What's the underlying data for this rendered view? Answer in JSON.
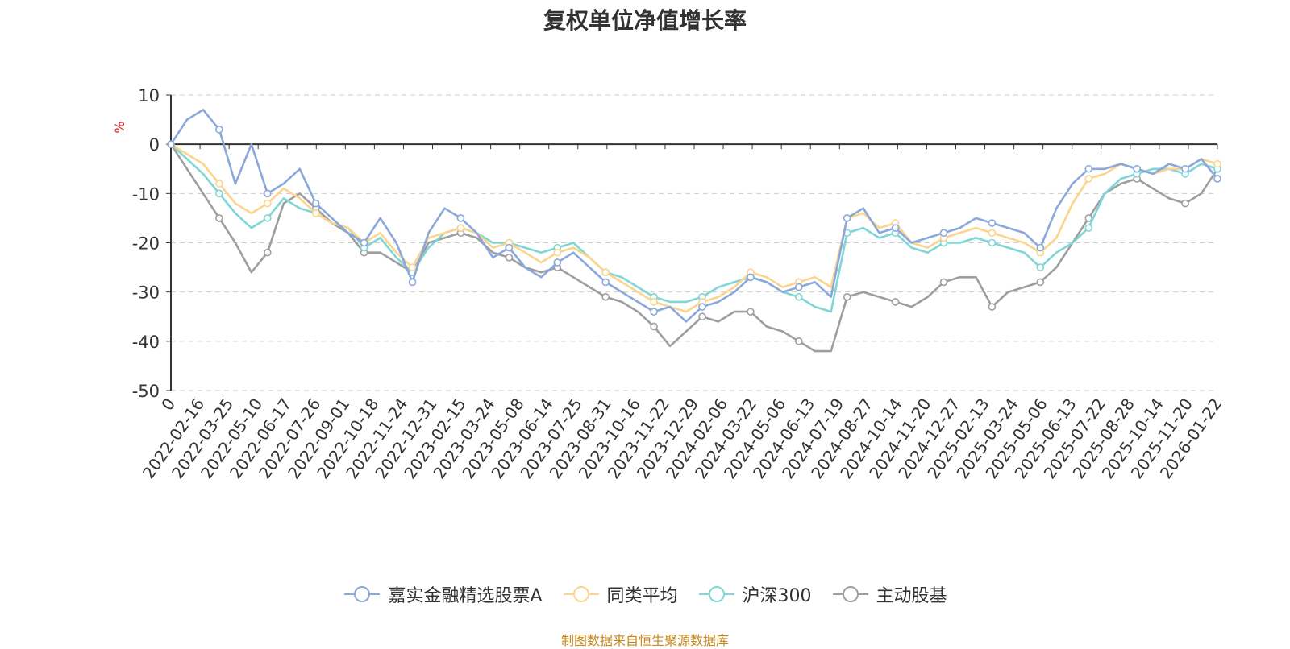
{
  "title": "复权单位净值增长率",
  "source": "制图数据来自恒生聚源数据库",
  "colors": {
    "series": [
      "#8aa8db",
      "#fcd48c",
      "#7fd6d6",
      "#9e9e9e"
    ],
    "axis": "#333333",
    "grid": "#cccccc",
    "ylabel": "#e0201b"
  },
  "chart_data": {
    "type": "line",
    "title": "复权单位净值增长率",
    "ylabel": "%",
    "ylim": [
      -50,
      10
    ],
    "yticks": [
      10,
      0,
      -10,
      -20,
      -30,
      -40,
      -50
    ],
    "grid": true,
    "legend_position": "bottom-center",
    "xtick_labels": [
      "0",
      "2022-02-16",
      "2022-03-25",
      "2022-05-10",
      "2022-06-17",
      "2022-07-26",
      "2022-09-01",
      "2022-10-18",
      "2022-11-24",
      "2022-12-31",
      "2023-02-15",
      "2023-03-24",
      "2023-05-08",
      "2023-06-14",
      "2023-07-25",
      "2023-08-31",
      "2023-10-16",
      "2023-11-22",
      "2023-12-29",
      "2024-02-06",
      "2024-03-22",
      "2024-05-06",
      "2024-06-13",
      "2024-07-19",
      "2024-08-27",
      "2024-10-14",
      "2024-11-20",
      "2024-12-27",
      "2025-02-13",
      "2025-03-24",
      "2025-05-06",
      "2025-06-13",
      "2025-07-22",
      "2025-08-28",
      "2025-10-14",
      "2025-11-20",
      "2026-01-22"
    ],
    "series": [
      {
        "name": "嘉实金融精选股票A",
        "values": [
          0,
          5,
          7,
          3,
          -8,
          0,
          -10,
          -8,
          -5,
          -12,
          -15,
          -18,
          -20,
          -15,
          -20,
          -28,
          -18,
          -13,
          -15,
          -18,
          -23,
          -21,
          -25,
          -27,
          -24,
          -22,
          -25,
          -28,
          -30,
          -32,
          -34,
          -33,
          -36,
          -33,
          -32,
          -30,
          -27,
          -28,
          -30,
          -29,
          -28,
          -31,
          -15,
          -13,
          -18,
          -17,
          -20,
          -19,
          -18,
          -17,
          -15,
          -16,
          -17,
          -18,
          -21,
          -13,
          -8,
          -5,
          -5,
          -4,
          -5,
          -6,
          -4,
          -5,
          -3,
          -7
        ]
      },
      {
        "name": "同类平均",
        "values": [
          0,
          -2,
          -4,
          -8,
          -12,
          -14,
          -12,
          -9,
          -11,
          -14,
          -16,
          -17,
          -20,
          -18,
          -22,
          -25,
          -19,
          -18,
          -17,
          -18,
          -21,
          -20,
          -22,
          -24,
          -22,
          -21,
          -23,
          -26,
          -28,
          -30,
          -32,
          -33,
          -34,
          -32,
          -31,
          -29,
          -26,
          -27,
          -29,
          -28,
          -27,
          -29,
          -15,
          -14,
          -17,
          -16,
          -20,
          -21,
          -19,
          -18,
          -17,
          -18,
          -19,
          -20,
          -22,
          -19,
          -12,
          -7,
          -6,
          -4,
          -5,
          -6,
          -5,
          -5,
          -3,
          -4
        ]
      },
      {
        "name": "沪深300",
        "values": [
          0,
          -3,
          -6,
          -10,
          -14,
          -17,
          -15,
          -11,
          -13,
          -14,
          -16,
          -17,
          -21,
          -19,
          -23,
          -26,
          -21,
          -18,
          -17,
          -18,
          -20,
          -20,
          -21,
          -22,
          -21,
          -20,
          -23,
          -26,
          -27,
          -29,
          -31,
          -32,
          -32,
          -31,
          -29,
          -28,
          -27,
          -28,
          -30,
          -31,
          -33,
          -34,
          -18,
          -17,
          -19,
          -18,
          -21,
          -22,
          -20,
          -20,
          -19,
          -20,
          -21,
          -22,
          -25,
          -22,
          -20,
          -17,
          -10,
          -7,
          -6,
          -5,
          -5,
          -6,
          -4,
          -5
        ]
      },
      {
        "name": "主动股基",
        "values": [
          0,
          -5,
          -10,
          -15,
          -20,
          -26,
          -22,
          -12,
          -10,
          -13,
          -16,
          -18,
          -22,
          -22,
          -24,
          -26,
          -20,
          -19,
          -18,
          -19,
          -22,
          -23,
          -25,
          -26,
          -25,
          -27,
          -29,
          -31,
          -32,
          -34,
          -37,
          -41,
          -38,
          -35,
          -36,
          -34,
          -34,
          -37,
          -38,
          -40,
          -42,
          -42,
          -31,
          -30,
          -31,
          -32,
          -33,
          -31,
          -28,
          -27,
          -27,
          -33,
          -30,
          -29,
          -28,
          -25,
          -20,
          -15,
          -10,
          -8,
          -7,
          -9,
          -11,
          -12,
          -10,
          -5
        ]
      }
    ]
  }
}
